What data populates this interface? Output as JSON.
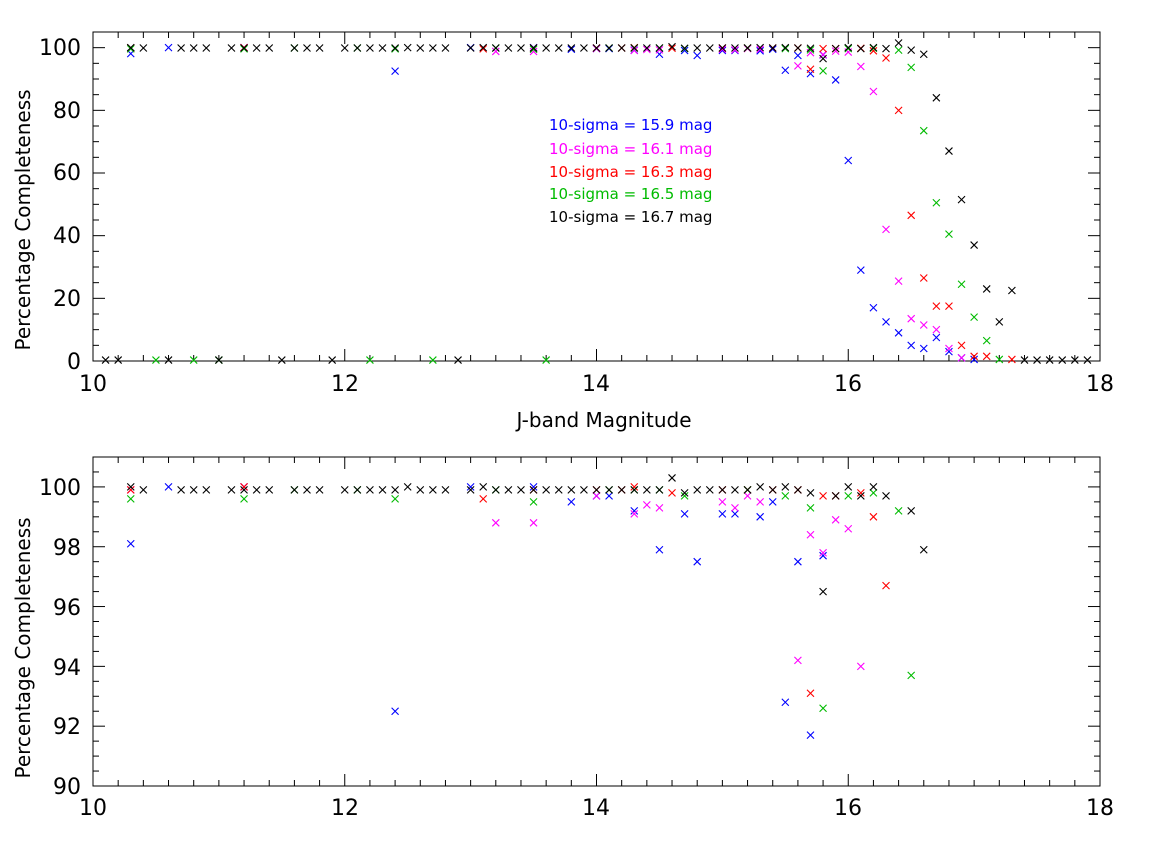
{
  "chart_data": [
    {
      "type": "scatter",
      "marker": "x",
      "xlabel": "J-band Magnitude",
      "ylabel": "Percentage Completeness",
      "xlim": [
        10,
        18
      ],
      "ylim": [
        0,
        105
      ],
      "x_ticks": [
        "10",
        "12",
        "14",
        "16",
        "18"
      ],
      "y_ticks": [
        "0",
        "20",
        "40",
        "60",
        "80",
        "100"
      ],
      "legend_placement": "center",
      "series": [
        {
          "name": "10-sigma = 15.9 mag",
          "color": "#0000ff",
          "points": [
            [
              10.3,
              98.1
            ],
            [
              10.6,
              100
            ],
            [
              11.2,
              100
            ],
            [
              12.4,
              92.5
            ],
            [
              13.0,
              100
            ],
            [
              13.5,
              100
            ],
            [
              13.8,
              99.5
            ],
            [
              14.0,
              99.7
            ],
            [
              14.1,
              99.7
            ],
            [
              14.3,
              99.2
            ],
            [
              14.5,
              97.9
            ],
            [
              14.7,
              99.1
            ],
            [
              14.8,
              97.5
            ],
            [
              15.0,
              99.1
            ],
            [
              15.1,
              99.1
            ],
            [
              15.3,
              99.0
            ],
            [
              15.4,
              99.5
            ],
            [
              15.5,
              92.8
            ],
            [
              15.6,
              97.5
            ],
            [
              15.7,
              91.7
            ],
            [
              15.8,
              97.7
            ],
            [
              15.9,
              89.7
            ],
            [
              16.0,
              64.0
            ],
            [
              16.1,
              29.0
            ],
            [
              16.2,
              17.0
            ],
            [
              16.3,
              12.5
            ],
            [
              16.4,
              9.0
            ],
            [
              16.5,
              5.0
            ],
            [
              16.6,
              4.0
            ],
            [
              16.7,
              7.5
            ],
            [
              16.8,
              3.0
            ],
            [
              16.9,
              1.0
            ],
            [
              17.0,
              0.5
            ]
          ]
        },
        {
          "name": "10-sigma = 16.1 mag",
          "color": "#ff00ff",
          "points": [
            [
              10.3,
              99.9
            ],
            [
              11.2,
              100
            ],
            [
              13.2,
              98.8
            ],
            [
              13.5,
              98.8
            ],
            [
              14.0,
              99.7
            ],
            [
              14.3,
              99.1
            ],
            [
              14.4,
              99.4
            ],
            [
              14.5,
              99.3
            ],
            [
              15.0,
              99.5
            ],
            [
              15.1,
              99.3
            ],
            [
              15.2,
              99.7
            ],
            [
              15.3,
              99.5
            ],
            [
              15.6,
              94.2
            ],
            [
              15.7,
              98.4
            ],
            [
              15.8,
              97.8
            ],
            [
              15.9,
              98.9
            ],
            [
              16.0,
              98.6
            ],
            [
              16.1,
              94.0
            ],
            [
              16.2,
              86.0
            ],
            [
              16.3,
              42.0
            ],
            [
              16.4,
              25.5
            ],
            [
              16.5,
              13.5
            ],
            [
              16.6,
              11.5
            ],
            [
              16.7,
              10.0
            ],
            [
              16.8,
              4.0
            ],
            [
              16.9,
              1.0
            ]
          ]
        },
        {
          "name": "10-sigma = 16.3 mag",
          "color": "#ff0000",
          "points": [
            [
              10.3,
              99.9
            ],
            [
              11.2,
              100
            ],
            [
              13.1,
              99.6
            ],
            [
              13.5,
              99.9
            ],
            [
              14.0,
              99.9
            ],
            [
              14.2,
              99.9
            ],
            [
              14.3,
              100
            ],
            [
              14.6,
              99.8
            ],
            [
              15.0,
              99.9
            ],
            [
              15.2,
              99.9
            ],
            [
              15.4,
              99.9
            ],
            [
              15.6,
              99.9
            ],
            [
              15.7,
              93.1
            ],
            [
              15.8,
              99.7
            ],
            [
              15.9,
              99.7
            ],
            [
              16.1,
              99.8
            ],
            [
              16.2,
              99.0
            ],
            [
              16.3,
              96.7
            ],
            [
              16.4,
              80.0
            ],
            [
              16.5,
              46.5
            ],
            [
              16.6,
              26.5
            ],
            [
              16.7,
              17.5
            ],
            [
              16.8,
              17.5
            ],
            [
              16.9,
              5.0
            ],
            [
              17.0,
              1.5
            ],
            [
              17.1,
              1.5
            ],
            [
              17.3,
              0.5
            ]
          ]
        },
        {
          "name": "10-sigma = 16.5 mag",
          "color": "#00bb00",
          "points": [
            [
              10.3,
              99.6
            ],
            [
              11.2,
              99.6
            ],
            [
              11.6,
              99.9
            ],
            [
              12.1,
              99.9
            ],
            [
              12.4,
              99.6
            ],
            [
              13.2,
              99.9
            ],
            [
              13.5,
              99.5
            ],
            [
              14.1,
              99.9
            ],
            [
              14.3,
              99.9
            ],
            [
              14.5,
              99.9
            ],
            [
              14.7,
              99.7
            ],
            [
              15.2,
              99.9
            ],
            [
              15.5,
              99.7
            ],
            [
              15.7,
              99.3
            ],
            [
              15.8,
              92.6
            ],
            [
              16.0,
              99.7
            ],
            [
              16.2,
              99.8
            ],
            [
              16.4,
              99.2
            ],
            [
              16.5,
              93.7
            ],
            [
              16.6,
              73.5
            ],
            [
              16.7,
              50.5
            ],
            [
              16.8,
              40.5
            ],
            [
              16.9,
              24.5
            ],
            [
              17.0,
              14.0
            ],
            [
              17.1,
              6.5
            ],
            [
              17.2,
              0.5
            ],
            [
              10.5,
              0.3
            ],
            [
              10.8,
              0.3
            ],
            [
              11.0,
              0.3
            ],
            [
              12.2,
              0.3
            ],
            [
              12.7,
              0.3
            ],
            [
              13.6,
              0.3
            ]
          ]
        },
        {
          "name": "10-sigma = 16.7 mag",
          "color": "#000000",
          "points": [
            [
              10.3,
              100
            ],
            [
              10.4,
              99.9
            ],
            [
              10.7,
              99.9
            ],
            [
              10.8,
              99.9
            ],
            [
              10.9,
              99.9
            ],
            [
              11.1,
              99.9
            ],
            [
              11.2,
              99.9
            ],
            [
              11.3,
              99.9
            ],
            [
              11.4,
              99.9
            ],
            [
              11.6,
              99.9
            ],
            [
              11.7,
              99.9
            ],
            [
              11.8,
              99.9
            ],
            [
              12.0,
              99.9
            ],
            [
              12.1,
              99.9
            ],
            [
              12.2,
              99.9
            ],
            [
              12.3,
              99.9
            ],
            [
              12.4,
              99.9
            ],
            [
              12.5,
              100
            ],
            [
              12.6,
              99.9
            ],
            [
              12.7,
              99.9
            ],
            [
              12.8,
              99.9
            ],
            [
              13.0,
              99.9
            ],
            [
              13.1,
              100
            ],
            [
              13.2,
              99.9
            ],
            [
              13.3,
              99.9
            ],
            [
              13.4,
              99.9
            ],
            [
              13.5,
              99.9
            ],
            [
              13.6,
              99.9
            ],
            [
              13.7,
              99.9
            ],
            [
              13.8,
              99.9
            ],
            [
              13.9,
              99.9
            ],
            [
              14.0,
              99.9
            ],
            [
              14.1,
              99.9
            ],
            [
              14.2,
              99.9
            ],
            [
              14.3,
              99.9
            ],
            [
              14.4,
              99.9
            ],
            [
              14.5,
              99.9
            ],
            [
              14.6,
              100.3
            ],
            [
              14.7,
              99.8
            ],
            [
              14.8,
              99.9
            ],
            [
              14.9,
              99.9
            ],
            [
              15.0,
              99.9
            ],
            [
              15.1,
              99.9
            ],
            [
              15.2,
              99.9
            ],
            [
              15.3,
              100
            ],
            [
              15.4,
              99.9
            ],
            [
              15.5,
              100
            ],
            [
              15.6,
              99.9
            ],
            [
              15.7,
              99.8
            ],
            [
              15.8,
              96.5
            ],
            [
              15.9,
              99.7
            ],
            [
              16.0,
              100
            ],
            [
              16.1,
              99.7
            ],
            [
              16.2,
              100
            ],
            [
              16.3,
              99.7
            ],
            [
              16.4,
              101.5
            ],
            [
              16.5,
              99.2
            ],
            [
              16.6,
              97.9
            ],
            [
              16.7,
              84.0
            ],
            [
              16.8,
              67.0
            ],
            [
              16.9,
              51.5
            ],
            [
              17.0,
              37.0
            ],
            [
              17.1,
              23.0
            ],
            [
              17.2,
              12.5
            ],
            [
              17.3,
              22.5
            ],
            [
              17.4,
              0.3
            ],
            [
              17.5,
              0.3
            ],
            [
              17.6,
              0.3
            ],
            [
              17.7,
              0.3
            ],
            [
              17.8,
              0.3
            ],
            [
              17.9,
              0.3
            ],
            [
              10.1,
              0.3
            ],
            [
              10.2,
              0.3
            ],
            [
              10.6,
              0.3
            ],
            [
              11.0,
              0.3
            ],
            [
              11.5,
              0.3
            ],
            [
              11.9,
              0.3
            ],
            [
              12.9,
              0.3
            ]
          ]
        }
      ]
    },
    {
      "type": "scatter",
      "marker": "x",
      "xlabel": "",
      "ylabel": "Percentage Completeness",
      "xlim": [
        10,
        18
      ],
      "ylim": [
        90,
        101
      ],
      "x_ticks": [
        "10",
        "12",
        "14",
        "16",
        "18"
      ],
      "y_ticks": [
        "90",
        "92",
        "94",
        "96",
        "98",
        "100"
      ],
      "same_series_as_top_panel": true
    }
  ]
}
